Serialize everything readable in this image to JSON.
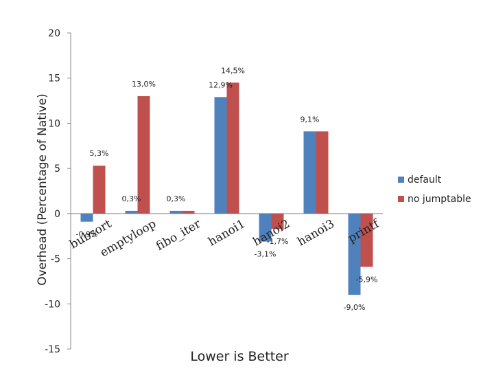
{
  "chart_data": {
    "type": "bar",
    "title": "",
    "ylabel": "Overhead (Percentage of Native)",
    "xlabel": "Lower is Better",
    "ylim": [
      -15,
      20
    ],
    "yticks": [
      -15,
      -10,
      -5,
      0,
      5,
      10,
      15,
      20
    ],
    "grid": false,
    "legend_position": "right",
    "categories": [
      "bubsort",
      "emptyloop",
      "fibo_iter",
      "hanoi1",
      "hanoi2",
      "hanoi3",
      "printf"
    ],
    "series": [
      {
        "name": "default",
        "color": "#4F81BD",
        "values": [
          -0.9,
          0.3,
          0.3,
          12.9,
          -3.1,
          9.1,
          -9.0
        ],
        "labels": [
          "-0,9%",
          "0,3%",
          "0,3%",
          "12,9%",
          "-3,1%",
          "9,1%",
          "-9,0%"
        ]
      },
      {
        "name": "no jumptable",
        "color": "#C0504D",
        "values": [
          5.3,
          13.0,
          0.3,
          14.5,
          -1.7,
          9.1,
          -5.9
        ],
        "labels": [
          "5,3%",
          "13,0%",
          "",
          "14,5%",
          "-1,7%",
          "",
          "-5,9%"
        ]
      }
    ]
  }
}
